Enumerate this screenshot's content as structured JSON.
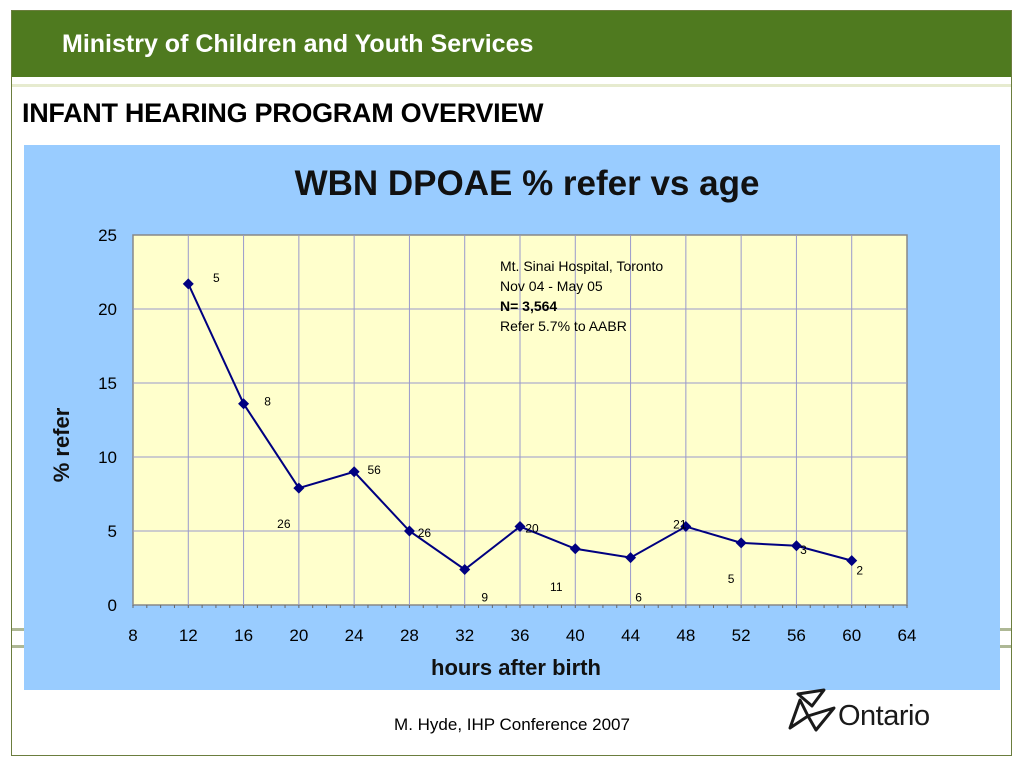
{
  "header": {
    "ministry": "Ministry of Children and Youth Services",
    "section_title": "INFANT HEARING PROGRAM OVERVIEW"
  },
  "footer": {
    "credit": "M. Hyde, IHP Conference 2007",
    "logo_text": "Ontario"
  },
  "colors": {
    "header_green": "#4f7a1f",
    "chart_bg": "#99ccff",
    "plot_bg": "#ffffcc",
    "series": "#000080"
  },
  "chart_data": {
    "type": "line",
    "title": "WBN DPOAE % refer vs age",
    "xlabel": "hours after birth",
    "ylabel": "% refer",
    "xlim": [
      8,
      64
    ],
    "ylim": [
      0,
      25
    ],
    "xticks": [
      8,
      12,
      16,
      20,
      24,
      28,
      32,
      36,
      40,
      44,
      48,
      52,
      56,
      60,
      64
    ],
    "yticks": [
      0,
      5,
      10,
      15,
      20,
      25
    ],
    "grid": true,
    "legend": "none",
    "annotation": [
      "Mt. Sinai Hospital, Toronto",
      "Nov 04 - May 05",
      "N= 3,564",
      "Refer 5.7% to AABR"
    ],
    "series": [
      {
        "x": [
          12,
          16,
          20,
          24,
          28,
          32,
          36,
          40,
          44,
          48,
          52,
          56,
          60
        ],
        "values": [
          21.7,
          13.6,
          7.9,
          9.0,
          5.0,
          2.4,
          5.3,
          3.8,
          3.2,
          5.3,
          4.2,
          4.0,
          3.0
        ]
      }
    ],
    "data_labels": [
      {
        "x": 12,
        "y": 21.7,
        "text": "5"
      },
      {
        "x": 16,
        "y": 13.6,
        "text": "8"
      },
      {
        "x": 20,
        "y": 7.9,
        "text": "26"
      },
      {
        "x": 24,
        "y": 9.0,
        "text": "56"
      },
      {
        "x": 28,
        "y": 5.0,
        "text": "26"
      },
      {
        "x": 32,
        "y": 2.4,
        "text": "9"
      },
      {
        "x": 36,
        "y": 5.3,
        "text": "20"
      },
      {
        "x": 40,
        "y": 3.8,
        "text": "11"
      },
      {
        "x": 44,
        "y": 3.2,
        "text": "6"
      },
      {
        "x": 48,
        "y": 5.3,
        "text": "21"
      },
      {
        "x": 52,
        "y": 4.2,
        "text": "5"
      },
      {
        "x": 56,
        "y": 4.0,
        "text": "3"
      },
      {
        "x": 60,
        "y": 3.0,
        "text": "2"
      }
    ]
  }
}
